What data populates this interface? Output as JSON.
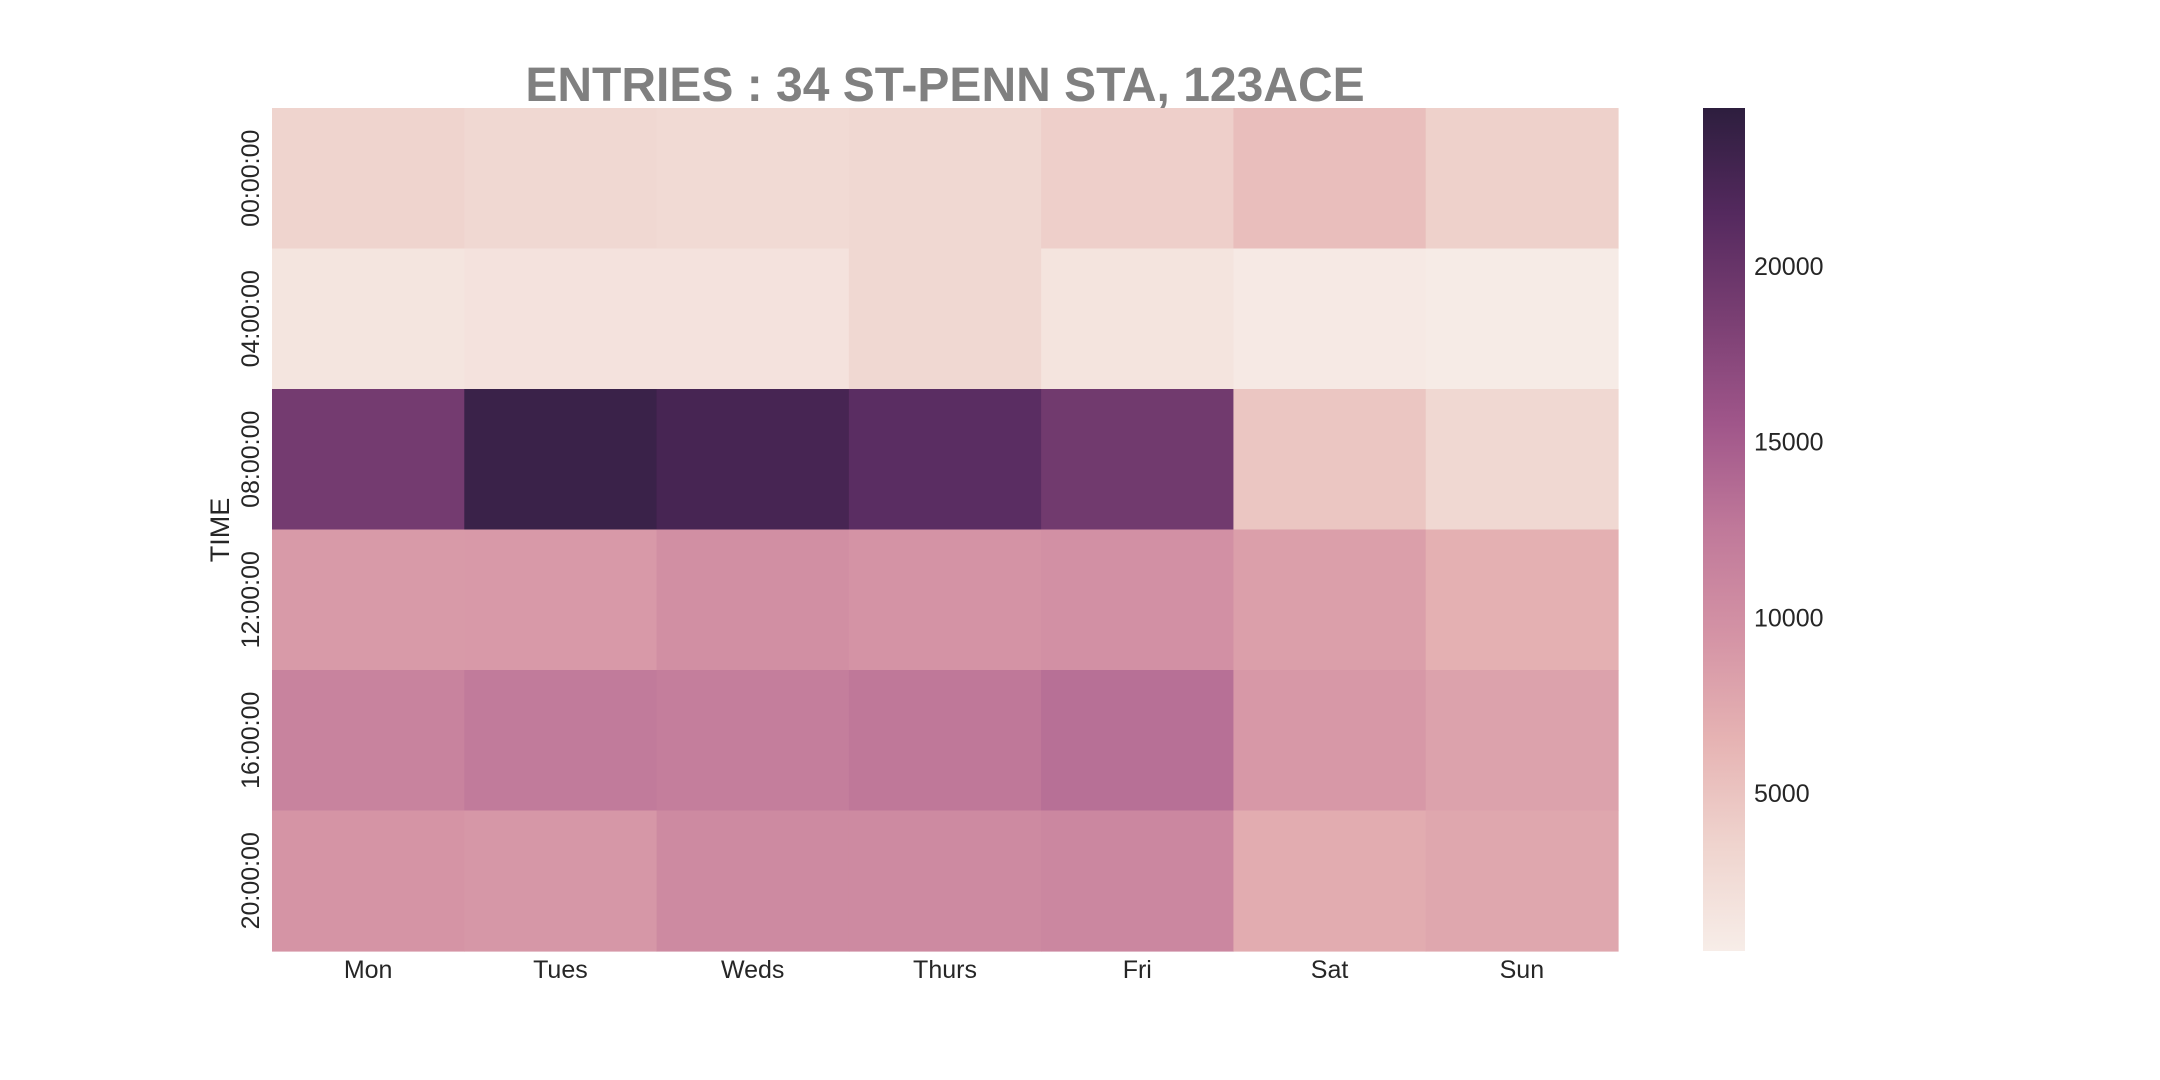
{
  "chart_data": {
    "type": "heatmap",
    "title": "ENTRIES : 34 ST-PENN STA, 123ACE",
    "xlabel": "",
    "ylabel": "TIME",
    "x_categories": [
      "Mon",
      "Tues",
      "Weds",
      "Thurs",
      "Fri",
      "Sat",
      "Sun"
    ],
    "y_categories": [
      "00:00:00",
      "04:00:00",
      "08:00:00",
      "12:00:00",
      "16:00:00",
      "20:00:00"
    ],
    "values": [
      [
        3500,
        3000,
        2800,
        3000,
        4000,
        5500,
        3800
      ],
      [
        1500,
        1800,
        1800,
        3000,
        1600,
        1000,
        700
      ],
      [
        19000,
        23500,
        22500,
        21000,
        19200,
        4800,
        3000
      ],
      [
        8800,
        8900,
        10000,
        9500,
        9800,
        8400,
        6800
      ],
      [
        11300,
        12300,
        11900,
        12600,
        13300,
        9000,
        8100
      ],
      [
        9400,
        9100,
        10500,
        10500,
        10900,
        7200,
        7600
      ]
    ],
    "colorbar": {
      "vmin": 500,
      "vmax": 24500,
      "ticks": [
        5000,
        10000,
        15000,
        20000
      ],
      "colors": [
        "#f7ede8",
        "#efd4ce",
        "#e6b3b3",
        "#d493a5",
        "#c0799a",
        "#a0568a",
        "#7a3f73",
        "#54295e",
        "#2d1e3e"
      ]
    },
    "legend": "colorbar-right",
    "grid": false
  }
}
